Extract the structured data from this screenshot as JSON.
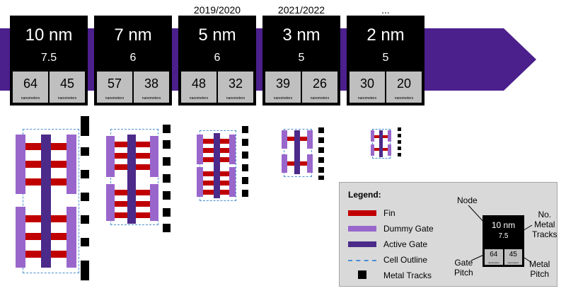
{
  "timeline": [
    {
      "year": "",
      "node": "10 nm",
      "tracks": "7.5",
      "gate_pitch": "64",
      "metal_pitch": "45"
    },
    {
      "year": "",
      "node": "7 nm",
      "tracks": "6",
      "gate_pitch": "57",
      "metal_pitch": "38"
    },
    {
      "year": "2019/2020",
      "node": "5 nm",
      "tracks": "6",
      "gate_pitch": "48",
      "metal_pitch": "32"
    },
    {
      "year": "2021/2022",
      "node": "3 nm",
      "tracks": "5",
      "gate_pitch": "39",
      "metal_pitch": "26"
    },
    {
      "year": "...",
      "node": "2 nm",
      "tracks": "5",
      "gate_pitch": "30",
      "metal_pitch": "20"
    }
  ],
  "unit_label": "nanometers",
  "colors": {
    "arrow": "#4b1f8c",
    "fin": "#c00000",
    "dummy_gate": "#9966cc",
    "active_gate": "#4b2a8a",
    "cell_outline": "#4a8fd0",
    "metal_track": "#000000"
  },
  "legend": {
    "title": "Legend:",
    "items": [
      "Fin",
      "Dummy Gate",
      "Active Gate",
      "Cell Outline",
      "Metal Tracks"
    ],
    "example": {
      "node": "10 nm",
      "tracks": "7.5",
      "gate_pitch": "64",
      "metal_pitch": "45"
    },
    "callouts": {
      "node": "Node",
      "tracks": "No.\nMetal\nTracks",
      "gate_pitch": "Gate\nPitch",
      "metal_pitch": "Metal\nPitch"
    }
  }
}
